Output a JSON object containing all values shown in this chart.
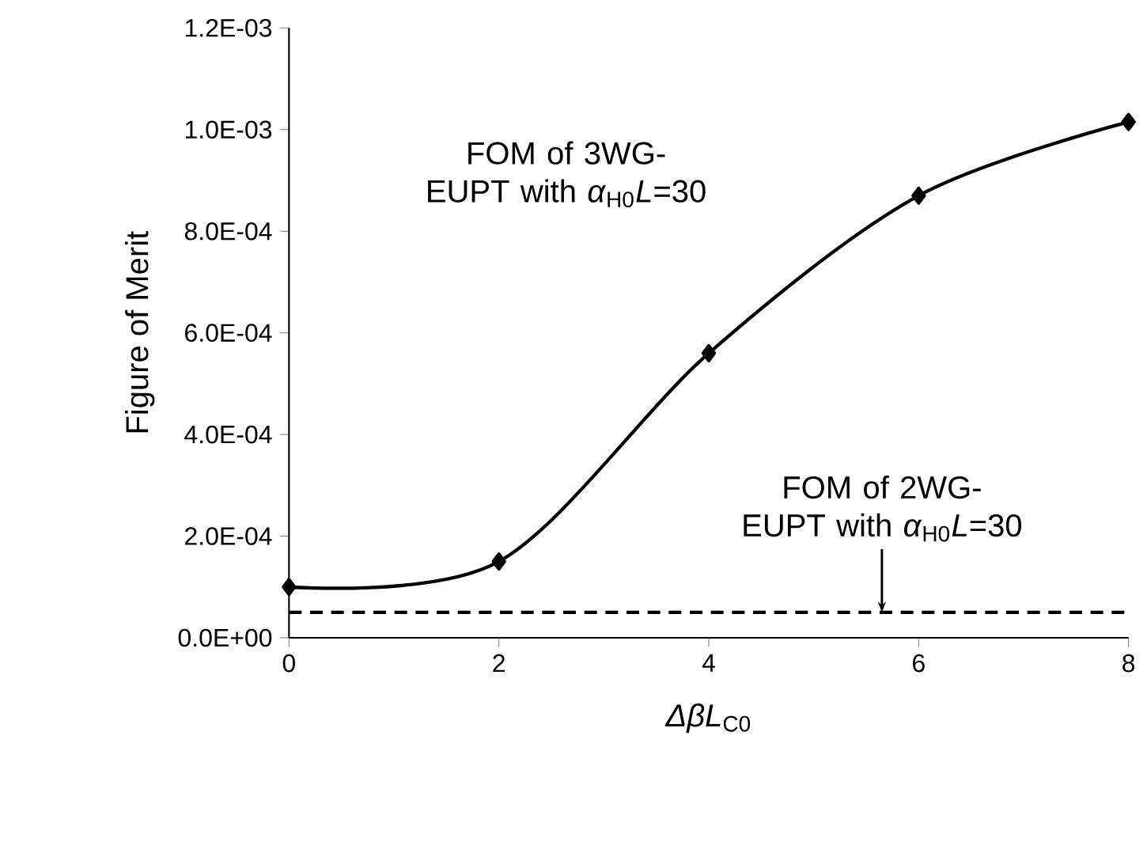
{
  "chart_data": {
    "type": "line",
    "xlabel": "*ΔβL*$_{C0}$",
    "ylabel": "Figure of Merit",
    "x": [
      0,
      2,
      4,
      6,
      8
    ],
    "series": [
      {
        "color": "#000000",
        "values": [
          0.0001,
          0.00015,
          0.00056,
          0.00087,
          0.001015
        ]
      }
    ],
    "marker": "diamond",
    "line_style": "solid",
    "grid": false,
    "xlim": [
      0,
      8
    ],
    "xticks": [
      0,
      2,
      4,
      6,
      8
    ],
    "ylim": [
      0,
      0.0012
    ],
    "yticks": [
      {
        "value": 0,
        "label": "0.0E+00"
      },
      {
        "value": 0.0002,
        "label": "2.0E-04"
      },
      {
        "value": 0.0004,
        "label": "4.0E-04"
      },
      {
        "value": 0.0006,
        "label": "6.0E-04"
      },
      {
        "value": 0.0008,
        "label": "8.0E-04"
      },
      {
        "value": 0.001,
        "label": "1.0E-03"
      },
      {
        "value": 0.0012,
        "label": "1.2E-03"
      }
    ],
    "ref_lines": [
      {
        "axis": "y",
        "value": 5e-05,
        "label": "FOM of 2WG-EUPT with *α*$_{H0}$*L*=30",
        "line_style": "dashed",
        "color": "#000000"
      }
    ],
    "annotations": [
      "FOM of 3WG-EUPT with *α*$_{H0}$*L*=30"
    ]
  }
}
